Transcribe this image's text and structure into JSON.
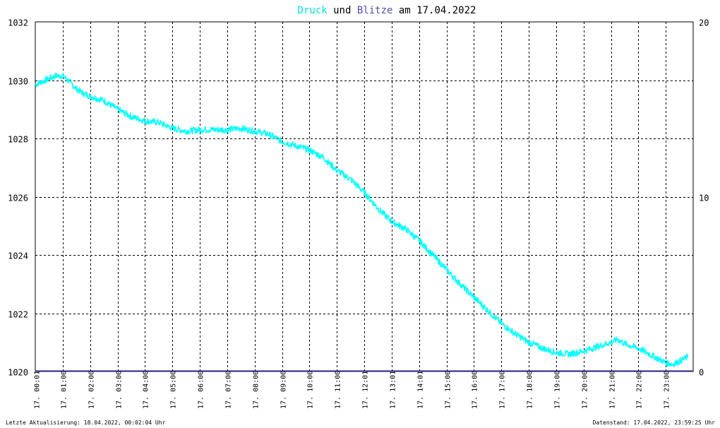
{
  "chart_data": {
    "type": "line",
    "title": {
      "part1": "Druck",
      "part2": " und ",
      "part3": "Blitze",
      "part4": " am 17.04.2022"
    },
    "colors": {
      "druck": "#00ffff",
      "blitze": "#202080",
      "grid": "#000000",
      "background": "#ffffff"
    },
    "y_left": {
      "min": 1020,
      "max": 1032,
      "ticks": [
        1020,
        1022,
        1024,
        1026,
        1028,
        1030,
        1032
      ]
    },
    "y_right": {
      "min": 0,
      "max": 20,
      "ticks": [
        0,
        10,
        20
      ]
    },
    "x_hours": {
      "min": 0,
      "max": 24
    },
    "x_ticks": [
      {
        "hour": 0.0167,
        "label": "17. 00:01"
      },
      {
        "hour": 1,
        "label": "17. 01:00"
      },
      {
        "hour": 2,
        "label": "17. 02:00"
      },
      {
        "hour": 3,
        "label": "17. 03:00"
      },
      {
        "hour": 4,
        "label": "17. 04:00"
      },
      {
        "hour": 5,
        "label": "17. 05:00"
      },
      {
        "hour": 6,
        "label": "17. 06:00"
      },
      {
        "hour": 7,
        "label": "17. 07:00"
      },
      {
        "hour": 8,
        "label": "17. 08:00"
      },
      {
        "hour": 9,
        "label": "17. 09:00"
      },
      {
        "hour": 10,
        "label": "17. 10:00"
      },
      {
        "hour": 11,
        "label": "17. 11:00"
      },
      {
        "hour": 12,
        "label": "17. 12:01"
      },
      {
        "hour": 13,
        "label": "17. 13:01"
      },
      {
        "hour": 14,
        "label": "17. 14:01"
      },
      {
        "hour": 15,
        "label": "17. 15:00"
      },
      {
        "hour": 16,
        "label": "17. 16:00"
      },
      {
        "hour": 17,
        "label": "17. 17:00"
      },
      {
        "hour": 18,
        "label": "17. 18:00"
      },
      {
        "hour": 19,
        "label": "17. 19:00"
      },
      {
        "hour": 20,
        "label": "17. 20:00"
      },
      {
        "hour": 21,
        "label": "17. 21:00"
      },
      {
        "hour": 22,
        "label": "17. 22:00"
      },
      {
        "hour": 23,
        "label": "17. 23:00"
      }
    ],
    "druck_series": {
      "hours": [
        0,
        0.25,
        0.5,
        0.75,
        1,
        1.25,
        1.5,
        1.75,
        2,
        2.5,
        3,
        3.5,
        4,
        4.5,
        5,
        5.5,
        6,
        6.5,
        7,
        7.5,
        8,
        8.5,
        9,
        9.5,
        10,
        10.5,
        11,
        11.5,
        12,
        12.5,
        13,
        13.5,
        14,
        14.5,
        15,
        15.5,
        16,
        16.5,
        17,
        17.5,
        18,
        18.5,
        19,
        19.5,
        20,
        20.5,
        21,
        21.25,
        21.5,
        22,
        22.5,
        23,
        23.25,
        23.5,
        23.8
      ],
      "values": [
        1029.85,
        1029.95,
        1030.05,
        1030.15,
        1030.15,
        1029.95,
        1029.7,
        1029.55,
        1029.45,
        1029.3,
        1029.0,
        1028.75,
        1028.6,
        1028.55,
        1028.35,
        1028.25,
        1028.3,
        1028.3,
        1028.3,
        1028.35,
        1028.25,
        1028.15,
        1027.9,
        1027.75,
        1027.6,
        1027.35,
        1026.9,
        1026.6,
        1026.15,
        1025.6,
        1025.15,
        1024.9,
        1024.5,
        1024.0,
        1023.5,
        1023.0,
        1022.55,
        1022.1,
        1021.65,
        1021.3,
        1021.0,
        1020.8,
        1020.65,
        1020.6,
        1020.7,
        1020.85,
        1021.0,
        1021.1,
        1020.95,
        1020.8,
        1020.55,
        1020.3,
        1020.25,
        1020.35,
        1020.5
      ]
    },
    "blitze_series": {
      "hours": [
        0,
        24
      ],
      "values": [
        0,
        0
      ]
    }
  },
  "footer": {
    "left": "Letzte Aktualisierung: 18.04.2022, 00:02:04 Uhr",
    "right": "Datenstand: 17.04.2022, 23:59:25 Uhr"
  }
}
